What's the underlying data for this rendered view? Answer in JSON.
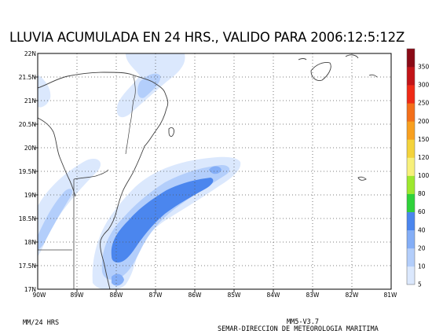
{
  "title": "LLUVIA ACUMULADA EN 24 HRS., VALIDO PARA 2006:12:5:12Z",
  "map": {
    "lat_labels": [
      "22N",
      "21.5N",
      "21N",
      "20.5N",
      "20N",
      "19.5N",
      "19N",
      "18.5N",
      "18N",
      "17.5N",
      "17N"
    ],
    "lon_labels": [
      "90W",
      "89W",
      "88W",
      "87W",
      "86W",
      "85W",
      "84W",
      "83W",
      "82W",
      "81W"
    ]
  },
  "legend": {
    "unit": "MM/24 HRS",
    "levels": [
      "5",
      "10",
      "20",
      "40",
      "60",
      "80",
      "100",
      "120",
      "150",
      "200",
      "250",
      "300",
      "350"
    ],
    "colors": [
      "#dbe8fd",
      "#b3cefb",
      "#84aef7",
      "#4b86ee",
      "#2fd23a",
      "#9de82e",
      "#f7f07a",
      "#f4d33b",
      "#f8a020",
      "#f36f1a",
      "#ef2a16",
      "#c21418",
      "#8a0a16"
    ]
  },
  "footer": {
    "model": "MM5-V3.7",
    "agency": "SEMAR-DIRECCION DE METEOROLOGIA MARITIMA"
  }
}
